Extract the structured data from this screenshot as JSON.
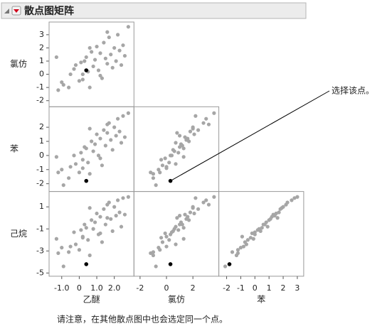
{
  "chart_data": {
    "type": "scatter_matrix",
    "title": "散点图矩阵",
    "point_color": "#a6a6a6",
    "selected_color": "#000000",
    "selected": 0,
    "annotation": "选择该点。",
    "note": "请注意，在其他散点图中也会选定同一个点。",
    "variables": [
      {
        "name": "乙醚",
        "lim": [
          -1.6,
          3.0
        ],
        "xticks": [
          {
            "value": -1,
            "label": "-1.0"
          },
          0,
          {
            "value": 1,
            "label": "1.0"
          },
          {
            "value": 2,
            "label": "2.0"
          }
        ],
        "values": [
          0.4,
          -1.3,
          -1.2,
          -0.9,
          -0.6,
          -0.5,
          -0.3,
          -0.2,
          0.0,
          0.1,
          0.2,
          0.3,
          0.4,
          0.5,
          0.6,
          0.7,
          0.8,
          0.9,
          1.0,
          1.1,
          1.2,
          1.3,
          1.4,
          1.5,
          1.6,
          1.7,
          1.8,
          1.9,
          2.0,
          2.1,
          2.2,
          2.3,
          2.4,
          2.5,
          2.6,
          2.8,
          1.2,
          0.6,
          -1.0,
          0.2,
          1.6
        ]
      },
      {
        "name": "氯仿",
        "lim": [
          -2.3,
          3.8
        ],
        "yticks": [
          -2,
          -1,
          0,
          1,
          2,
          3
        ],
        "xticks": [
          -2,
          0,
          2
        ],
        "values": [
          0.3,
          1.3,
          -1.2,
          -0.8,
          -1.0,
          0.0,
          0.4,
          0.7,
          -0.5,
          0.9,
          -0.4,
          1.0,
          1.3,
          0.2,
          -1.0,
          1.7,
          0.6,
          1.1,
          2.1,
          0.3,
          1.6,
          -0.3,
          2.4,
          1.2,
          0.8,
          2.8,
          1.5,
          0.5,
          2.0,
          1.0,
          3.0,
          1.8,
          0.7,
          2.2,
          1.4,
          3.6,
          -0.1,
          2.0,
          -0.6,
          0.0,
          3.2
        ]
      },
      {
        "name": "苯",
        "lim": [
          -2.4,
          3.3
        ],
        "yticks": [
          -2,
          -1,
          0,
          1,
          2
        ],
        "xticks": [
          -2,
          -1,
          0,
          1,
          2,
          3
        ],
        "values": [
          -1.8,
          -0.1,
          -1.2,
          -2.1,
          -1.6,
          -0.8,
          0.0,
          -0.6,
          -1.2,
          0.2,
          -0.3,
          0.6,
          0.5,
          -0.5,
          -1.3,
          1.0,
          0.3,
          0.8,
          1.5,
          0.0,
          1.2,
          -0.7,
          1.8,
          0.7,
          1.6,
          2.3,
          1.1,
          0.4,
          2.0,
          1.4,
          2.6,
          1.7,
          0.9,
          2.8,
          1.3,
          3.0,
          -0.2,
          1.9,
          -1.0,
          -0.9,
          2.2
        ]
      },
      {
        "name": "己烷",
        "lim": [
          -5.1,
          2.2
        ],
        "yticks": [
          -5,
          -3,
          -1,
          1
        ],
        "values": [
          -4.2,
          -1.9,
          -3.2,
          -4.4,
          -3.1,
          -2.6,
          -1.3,
          -2.4,
          -2.9,
          -1.1,
          -1.8,
          -0.6,
          -0.9,
          -2.0,
          -3.4,
          -0.2,
          -1.0,
          -0.4,
          0.4,
          -1.5,
          0.1,
          -2.2,
          0.8,
          -0.6,
          0.0,
          1.4,
          -0.1,
          -1.2,
          1.0,
          0.2,
          1.6,
          0.5,
          -0.8,
          1.8,
          0.3,
          1.9,
          -1.4,
          0.9,
          -2.7,
          -1.7,
          1.2
        ]
      }
    ]
  }
}
